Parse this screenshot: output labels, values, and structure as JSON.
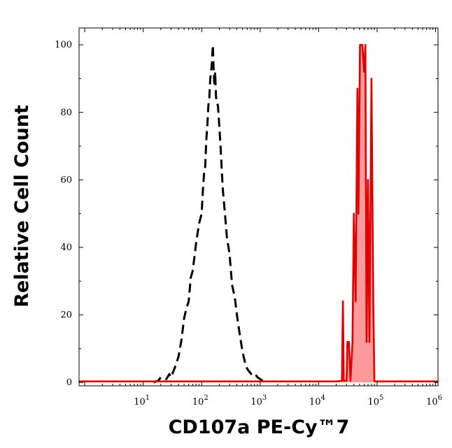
{
  "chart_data": {
    "type": "area",
    "xlabel": "CD107a PE-Cy™7",
    "ylabel": "Relative Cell Count",
    "x_scale": "log10",
    "xlim": [
      0.8,
      1100000
    ],
    "ylim": [
      -1,
      105
    ],
    "x_ticks": [
      {
        "base": "10",
        "exp": "1",
        "value": 10
      },
      {
        "base": "10",
        "exp": "2",
        "value": 100
      },
      {
        "base": "10",
        "exp": "3",
        "value": 1000
      },
      {
        "base": "10",
        "exp": "4",
        "value": 10000
      },
      {
        "base": "10",
        "exp": "5",
        "value": 100000
      },
      {
        "base": "10",
        "exp": "6",
        "value": 1000000
      }
    ],
    "y_ticks": [
      "0",
      "20",
      "40",
      "60",
      "80",
      "100"
    ],
    "grid": false,
    "series": [
      {
        "style": "dashed",
        "color": "#000000",
        "fill": "none",
        "points": [
          [
            15,
            0
          ],
          [
            18,
            0.5
          ],
          [
            20,
            1.5
          ],
          [
            25,
            1
          ],
          [
            28,
            2.5
          ],
          [
            30,
            1.5
          ],
          [
            35,
            4.5
          ],
          [
            40,
            7.5
          ],
          [
            45,
            12.5
          ],
          [
            50,
            19
          ],
          [
            55,
            22
          ],
          [
            60,
            24
          ],
          [
            65,
            31
          ],
          [
            70,
            33
          ],
          [
            75,
            37
          ],
          [
            80,
            41
          ],
          [
            90,
            47
          ],
          [
            100,
            50
          ],
          [
            105,
            57
          ],
          [
            110,
            62
          ],
          [
            115,
            64
          ],
          [
            120,
            72
          ],
          [
            125,
            76
          ],
          [
            130,
            82
          ],
          [
            135,
            84
          ],
          [
            140,
            90
          ],
          [
            145,
            92
          ],
          [
            150,
            95
          ],
          [
            155,
            100
          ],
          [
            160,
            93
          ],
          [
            165,
            88
          ],
          [
            170,
            92
          ],
          [
            175,
            85
          ],
          [
            180,
            83
          ],
          [
            190,
            82
          ],
          [
            200,
            76
          ],
          [
            210,
            70
          ],
          [
            220,
            63
          ],
          [
            230,
            57
          ],
          [
            250,
            50
          ],
          [
            270,
            43
          ],
          [
            300,
            38
          ],
          [
            330,
            29
          ],
          [
            370,
            25
          ],
          [
            400,
            20
          ],
          [
            450,
            14
          ],
          [
            500,
            9
          ],
          [
            550,
            6
          ],
          [
            600,
            4
          ],
          [
            700,
            2.5
          ],
          [
            800,
            2.8
          ],
          [
            900,
            1.5
          ],
          [
            1000,
            1
          ],
          [
            1100,
            0.5
          ]
        ]
      },
      {
        "style": "solid",
        "color": "#e00000",
        "fill": "#ff9a9a",
        "points": [
          [
            0.8,
            0.3
          ],
          [
            20000,
            0.3
          ],
          [
            25000,
            0.5
          ],
          [
            26000,
            24
          ],
          [
            27000,
            0.5
          ],
          [
            30000,
            0.5
          ],
          [
            31000,
            12
          ],
          [
            33000,
            12
          ],
          [
            35000,
            0.5
          ],
          [
            38000,
            12
          ],
          [
            40000,
            50
          ],
          [
            43000,
            24
          ],
          [
            46000,
            87
          ],
          [
            48000,
            50
          ],
          [
            51000,
            100
          ],
          [
            56000,
            100
          ],
          [
            60000,
            92
          ],
          [
            63000,
            100
          ],
          [
            66000,
            12
          ],
          [
            70000,
            60
          ],
          [
            74000,
            12
          ],
          [
            80000,
            90
          ],
          [
            86000,
            24
          ],
          [
            90000,
            0.3
          ],
          [
            1100000,
            0.3
          ]
        ]
      }
    ]
  }
}
